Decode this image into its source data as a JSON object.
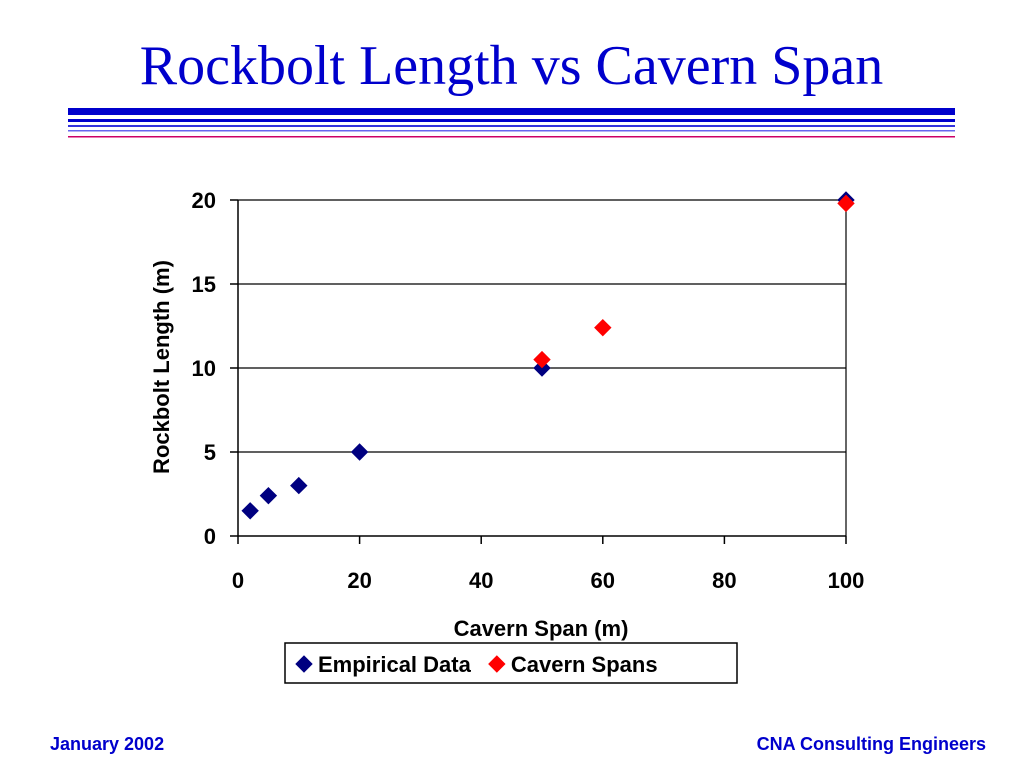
{
  "slide": {
    "title": "Rockbolt Length vs Cavern Span",
    "footer_left": "January 2002",
    "footer_right": "CNA Consulting Engineers",
    "title_color": "#0000cc",
    "rule_color": "#0000cc",
    "rule_accent_color": "#cc0066"
  },
  "chart_data": {
    "type": "scatter",
    "title": "",
    "xlabel": "Cavern Span (m)",
    "ylabel": "Rockbolt Length (m)",
    "xlim": [
      0,
      100
    ],
    "ylim": [
      0,
      20
    ],
    "x_ticks": [
      0,
      20,
      40,
      60,
      80,
      100
    ],
    "y_ticks": [
      0,
      5,
      10,
      15,
      20
    ],
    "grid": "horizontal",
    "legend": "bottom",
    "series": [
      {
        "name": "Empirical Data",
        "color": "#000080",
        "marker": "diamond",
        "points": [
          [
            2,
            1.5
          ],
          [
            5,
            2.4
          ],
          [
            10,
            3
          ],
          [
            20,
            5
          ],
          [
            50,
            10
          ],
          [
            100,
            20
          ]
        ]
      },
      {
        "name": "Cavern Spans",
        "color": "#ff0000",
        "marker": "diamond",
        "points": [
          [
            50,
            10.5
          ],
          [
            60,
            12.4
          ],
          [
            100,
            19.8
          ]
        ]
      }
    ]
  }
}
